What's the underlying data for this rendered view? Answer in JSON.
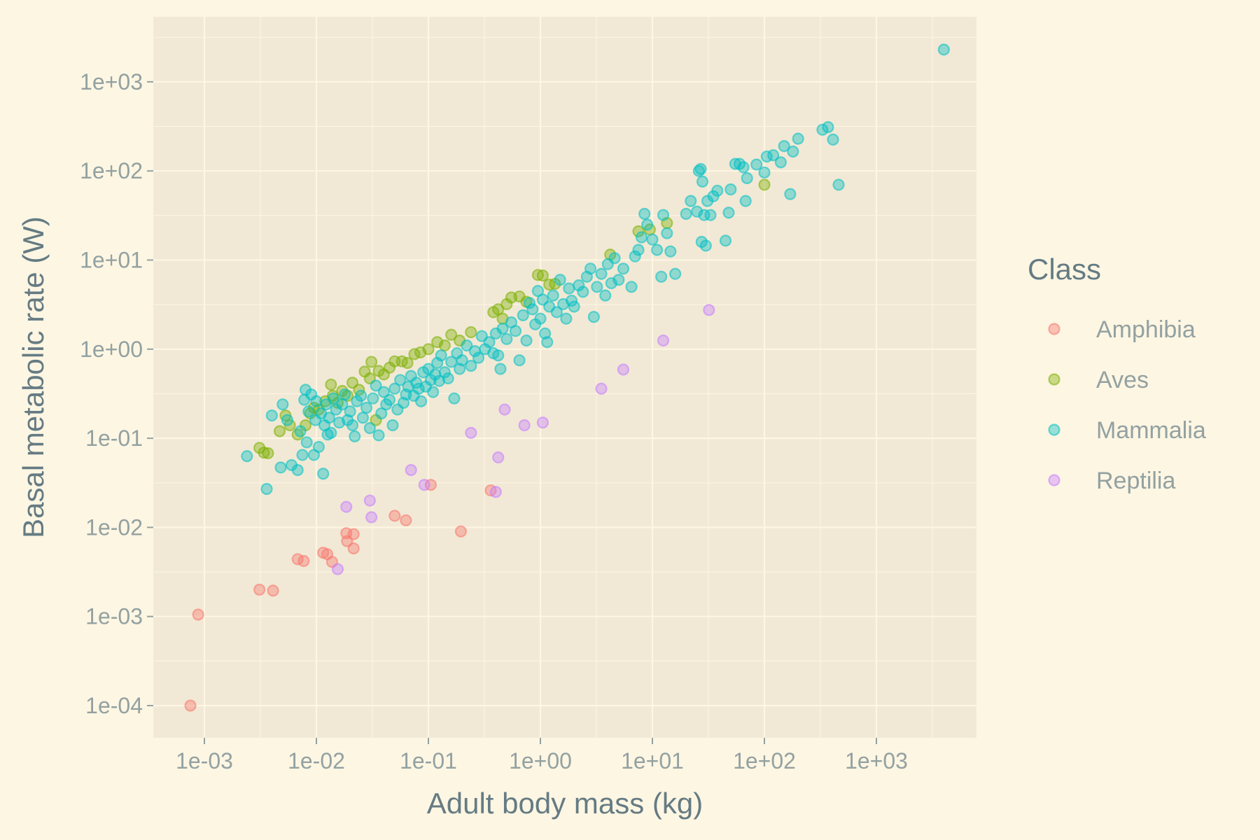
{
  "chart_data": {
    "type": "scatter",
    "title": "",
    "xlabel": "Adult body mass (kg)",
    "ylabel": "Basal metabolic rate (W)",
    "x_scale": "log10",
    "y_scale": "log10",
    "xlim": [
      0.0004,
      7000
    ],
    "ylim": [
      5e-05,
      6000
    ],
    "x_ticks": [
      0.001,
      0.01,
      0.1,
      1,
      10,
      100,
      1000
    ],
    "x_tick_labels": [
      "1e-03",
      "1e-02",
      "1e-01",
      "1e+00",
      "1e+01",
      "1e+02",
      "1e+03"
    ],
    "y_ticks": [
      0.0001,
      0.001,
      0.01,
      0.1,
      1,
      10,
      100,
      1000
    ],
    "y_tick_labels": [
      "1e-04",
      "1e-03",
      "1e-02",
      "1e-01",
      "1e+00",
      "1e+01",
      "1e+02",
      "1e+03"
    ],
    "grid": true,
    "legend": {
      "title": "Class",
      "position": "right"
    },
    "series": [
      {
        "name": "Amphibia",
        "color": "#F8766D",
        "points": [
          [
            0.00075,
            0.0001
          ],
          [
            0.00088,
            0.00105
          ],
          [
            0.0031,
            0.002
          ],
          [
            0.0041,
            0.00195
          ],
          [
            0.0068,
            0.0044
          ],
          [
            0.0077,
            0.0042
          ],
          [
            0.0115,
            0.0052
          ],
          [
            0.0125,
            0.005
          ],
          [
            0.0138,
            0.0041
          ],
          [
            0.0185,
            0.0086
          ],
          [
            0.0188,
            0.007
          ],
          [
            0.0215,
            0.0084
          ],
          [
            0.0215,
            0.0058
          ],
          [
            0.05,
            0.0135
          ],
          [
            0.063,
            0.012
          ],
          [
            0.105,
            0.03
          ],
          [
            0.195,
            0.009
          ],
          [
            0.36,
            0.026
          ]
        ]
      },
      {
        "name": "Aves",
        "color": "#7CAE00",
        "points": [
          [
            0.0031,
            0.078
          ],
          [
            0.0034,
            0.069
          ],
          [
            0.0037,
            0.068
          ],
          [
            0.0047,
            0.12
          ],
          [
            0.0053,
            0.18
          ],
          [
            0.0058,
            0.14
          ],
          [
            0.0068,
            0.11
          ],
          [
            0.008,
            0.14
          ],
          [
            0.0088,
            0.19
          ],
          [
            0.0095,
            0.22
          ],
          [
            0.0105,
            0.21
          ],
          [
            0.012,
            0.26
          ],
          [
            0.0135,
            0.4
          ],
          [
            0.014,
            0.3
          ],
          [
            0.0155,
            0.25
          ],
          [
            0.017,
            0.34
          ],
          [
            0.019,
            0.3
          ],
          [
            0.021,
            0.42
          ],
          [
            0.024,
            0.35
          ],
          [
            0.027,
            0.56
          ],
          [
            0.03,
            0.47
          ],
          [
            0.031,
            0.72
          ],
          [
            0.034,
            0.16
          ],
          [
            0.036,
            0.57
          ],
          [
            0.04,
            0.52
          ],
          [
            0.045,
            0.62
          ],
          [
            0.05,
            0.73
          ],
          [
            0.058,
            0.73
          ],
          [
            0.065,
            0.7
          ],
          [
            0.075,
            0.88
          ],
          [
            0.085,
            0.92
          ],
          [
            0.1,
            1.0
          ],
          [
            0.12,
            1.2
          ],
          [
            0.14,
            1.1
          ],
          [
            0.16,
            1.45
          ],
          [
            0.19,
            1.25
          ],
          [
            0.24,
            1.55
          ],
          [
            0.38,
            2.6
          ],
          [
            0.42,
            2.8
          ],
          [
            0.46,
            2.2
          ],
          [
            0.5,
            3.2
          ],
          [
            0.55,
            3.8
          ],
          [
            0.65,
            3.9
          ],
          [
            0.75,
            3.4
          ],
          [
            0.95,
            6.8
          ],
          [
            1.05,
            6.7
          ],
          [
            1.2,
            5.3
          ],
          [
            1.35,
            5.4
          ],
          [
            4.2,
            11.5
          ],
          [
            7.5,
            21
          ],
          [
            9.5,
            22
          ],
          [
            13.5,
            26
          ],
          [
            100,
            70
          ]
        ]
      },
      {
        "name": "Mammalia",
        "color": "#00BFC4",
        "points": [
          [
            0.0024,
            0.063
          ],
          [
            0.0036,
            0.027
          ],
          [
            0.004,
            0.18
          ],
          [
            0.0048,
            0.047
          ],
          [
            0.005,
            0.24
          ],
          [
            0.0055,
            0.16
          ],
          [
            0.006,
            0.05
          ],
          [
            0.0068,
            0.044
          ],
          [
            0.0072,
            0.12
          ],
          [
            0.0075,
            0.065
          ],
          [
            0.0078,
            0.27
          ],
          [
            0.008,
            0.35
          ],
          [
            0.0082,
            0.09
          ],
          [
            0.0085,
            0.2
          ],
          [
            0.009,
            0.31
          ],
          [
            0.0095,
            0.065
          ],
          [
            0.0098,
            0.16
          ],
          [
            0.01,
            0.26
          ],
          [
            0.0105,
            0.08
          ],
          [
            0.011,
            0.19
          ],
          [
            0.0115,
            0.04
          ],
          [
            0.0118,
            0.14
          ],
          [
            0.0122,
            0.24
          ],
          [
            0.0126,
            0.11
          ],
          [
            0.013,
            0.17
          ],
          [
            0.0135,
            0.115
          ],
          [
            0.0142,
            0.28
          ],
          [
            0.015,
            0.21
          ],
          [
            0.016,
            0.15
          ],
          [
            0.017,
            0.24
          ],
          [
            0.018,
            0.31
          ],
          [
            0.019,
            0.16
          ],
          [
            0.02,
            0.2
          ],
          [
            0.021,
            0.14
          ],
          [
            0.022,
            0.105
          ],
          [
            0.023,
            0.26
          ],
          [
            0.025,
            0.3
          ],
          [
            0.026,
            0.17
          ],
          [
            0.028,
            0.22
          ],
          [
            0.03,
            0.13
          ],
          [
            0.032,
            0.28
          ],
          [
            0.034,
            0.39
          ],
          [
            0.036,
            0.108
          ],
          [
            0.038,
            0.19
          ],
          [
            0.04,
            0.33
          ],
          [
            0.042,
            0.24
          ],
          [
            0.045,
            0.27
          ],
          [
            0.048,
            0.14
          ],
          [
            0.05,
            0.36
          ],
          [
            0.053,
            0.21
          ],
          [
            0.056,
            0.45
          ],
          [
            0.06,
            0.25
          ],
          [
            0.063,
            0.31
          ],
          [
            0.066,
            0.38
          ],
          [
            0.07,
            0.5
          ],
          [
            0.074,
            0.3
          ],
          [
            0.078,
            0.42
          ],
          [
            0.082,
            0.36
          ],
          [
            0.086,
            0.26
          ],
          [
            0.09,
            0.55
          ],
          [
            0.095,
            0.38
          ],
          [
            0.1,
            0.6
          ],
          [
            0.105,
            0.45
          ],
          [
            0.11,
            0.33
          ],
          [
            0.115,
            0.52
          ],
          [
            0.12,
            0.7
          ],
          [
            0.125,
            0.44
          ],
          [
            0.13,
            0.85
          ],
          [
            0.14,
            0.55
          ],
          [
            0.15,
            0.47
          ],
          [
            0.16,
            0.72
          ],
          [
            0.17,
            0.28
          ],
          [
            0.18,
            0.9
          ],
          [
            0.19,
            0.6
          ],
          [
            0.2,
            0.75
          ],
          [
            0.22,
            1.1
          ],
          [
            0.24,
            0.65
          ],
          [
            0.26,
            0.95
          ],
          [
            0.28,
            0.8
          ],
          [
            0.3,
            1.4
          ],
          [
            0.32,
            1.0
          ],
          [
            0.35,
            1.2
          ],
          [
            0.38,
            0.9
          ],
          [
            0.4,
            1.5
          ],
          [
            0.42,
            0.85
          ],
          [
            0.44,
            0.6
          ],
          [
            0.46,
            1.7
          ],
          [
            0.5,
            1.3
          ],
          [
            0.55,
            2.0
          ],
          [
            0.6,
            1.6
          ],
          [
            0.65,
            0.75
          ],
          [
            0.7,
            2.4
          ],
          [
            0.75,
            1.25
          ],
          [
            0.8,
            3.3
          ],
          [
            0.85,
            2.8
          ],
          [
            0.9,
            1.9
          ],
          [
            0.95,
            4.5
          ],
          [
            1.0,
            2.2
          ],
          [
            1.05,
            3.6
          ],
          [
            1.1,
            1.5
          ],
          [
            1.15,
            1.2
          ],
          [
            1.2,
            3.0
          ],
          [
            1.3,
            4.0
          ],
          [
            1.4,
            2.6
          ],
          [
            1.5,
            6.0
          ],
          [
            1.6,
            3.2
          ],
          [
            1.7,
            2.2
          ],
          [
            1.8,
            4.8
          ],
          [
            1.9,
            3.5
          ],
          [
            2.0,
            3.0
          ],
          [
            2.2,
            5.2
          ],
          [
            2.4,
            4.4
          ],
          [
            2.6,
            6.5
          ],
          [
            2.8,
            8.0
          ],
          [
            3.0,
            2.3
          ],
          [
            3.2,
            5.0
          ],
          [
            3.5,
            7.0
          ],
          [
            3.8,
            4.0
          ],
          [
            4.0,
            9.0
          ],
          [
            4.3,
            5.5
          ],
          [
            4.6,
            10.5
          ],
          [
            5.0,
            6.0
          ],
          [
            5.5,
            8.0
          ],
          [
            6.5,
            5.0
          ],
          [
            7.0,
            11.0
          ],
          [
            7.5,
            13.0
          ],
          [
            8.0,
            18.0
          ],
          [
            8.5,
            33.0
          ],
          [
            9.0,
            25.0
          ],
          [
            10.0,
            17.0
          ],
          [
            11.0,
            13.0
          ],
          [
            12.0,
            6.5
          ],
          [
            12.5,
            32.0
          ],
          [
            13.5,
            20.0
          ],
          [
            14.5,
            12.5
          ],
          [
            16.0,
            7.0
          ],
          [
            20.0,
            33.0
          ],
          [
            22.0,
            46.0
          ],
          [
            25.0,
            35.0
          ],
          [
            26.0,
            100.0
          ],
          [
            27.0,
            105.0
          ],
          [
            27.5,
            16.0
          ],
          [
            28.0,
            76.0
          ],
          [
            29.0,
            32.0
          ],
          [
            30.0,
            14.5
          ],
          [
            31.0,
            46.0
          ],
          [
            33.0,
            32.0
          ],
          [
            35.0,
            52.0
          ],
          [
            38.0,
            60.0
          ],
          [
            45.0,
            16.5
          ],
          [
            48.0,
            34.0
          ],
          [
            50.0,
            62.0
          ],
          [
            55.0,
            120.0
          ],
          [
            60.0,
            120.0
          ],
          [
            65.0,
            110.0
          ],
          [
            68.0,
            46.0
          ],
          [
            70.0,
            83.0
          ],
          [
            85.0,
            118.0
          ],
          [
            100.0,
            96.0
          ],
          [
            105.0,
            145.0
          ],
          [
            120.0,
            150.0
          ],
          [
            140.0,
            125.0
          ],
          [
            150.0,
            190.0
          ],
          [
            170.0,
            55.0
          ],
          [
            180.0,
            165.0
          ],
          [
            200.0,
            230.0
          ],
          [
            330.0,
            290.0
          ],
          [
            370.0,
            310.0
          ],
          [
            410.0,
            225.0
          ],
          [
            460.0,
            70.0
          ],
          [
            4000.0,
            2300.0
          ]
        ]
      },
      {
        "name": "Reptilia",
        "color": "#C77CFF",
        "points": [
          [
            0.0155,
            0.0034
          ],
          [
            0.0185,
            0.017
          ],
          [
            0.03,
            0.02
          ],
          [
            0.031,
            0.013
          ],
          [
            0.07,
            0.044
          ],
          [
            0.092,
            0.03
          ],
          [
            0.24,
            0.115
          ],
          [
            0.4,
            0.025
          ],
          [
            0.42,
            0.061
          ],
          [
            0.48,
            0.21
          ],
          [
            0.72,
            0.14
          ],
          [
            1.05,
            0.15
          ],
          [
            3.5,
            0.36
          ],
          [
            5.5,
            0.59
          ],
          [
            12.5,
            1.25
          ],
          [
            32.0,
            2.75
          ]
        ]
      }
    ]
  }
}
